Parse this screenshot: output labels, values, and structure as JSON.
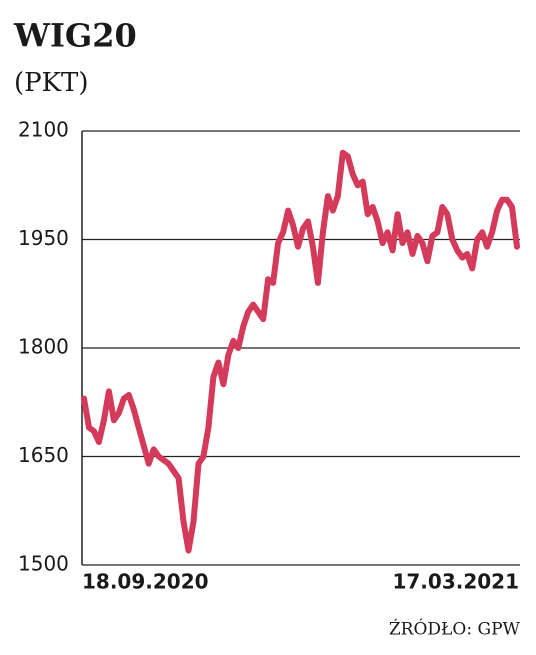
{
  "chart_data": {
    "type": "line",
    "title": "WIG20",
    "subtitle": "(PKT)",
    "source": "ŹRÓDŁO: GPW",
    "categories": [
      "18.09.2020",
      null,
      null,
      null,
      null,
      null,
      null,
      null,
      null,
      null,
      null,
      null,
      null,
      null,
      null,
      null,
      null,
      null,
      null,
      null,
      null,
      null,
      null,
      null,
      null,
      null,
      null,
      null,
      null,
      null,
      null,
      null,
      null,
      null,
      null,
      null,
      null,
      null,
      null,
      null,
      null,
      null,
      null,
      null,
      null,
      null,
      null,
      null,
      null,
      null,
      null,
      null,
      null,
      null,
      null,
      null,
      null,
      null,
      null,
      null,
      null,
      null,
      null,
      null,
      null,
      null,
      null,
      null,
      null,
      null,
      null,
      null,
      null,
      null,
      null,
      null,
      null,
      null,
      null,
      null,
      null,
      null,
      null,
      null,
      null,
      null,
      null,
      "17.03.2021"
    ],
    "series": [
      {
        "name": "WIG20",
        "color": "#d43a5a",
        "values": [
          1730,
          1690,
          1685,
          1670,
          1700,
          1740,
          1700,
          1710,
          1730,
          1735,
          1715,
          1690,
          1665,
          1640,
          1660,
          1650,
          1645,
          1640,
          1630,
          1620,
          1560,
          1520,
          1560,
          1640,
          1650,
          1690,
          1760,
          1780,
          1750,
          1790,
          1810,
          1800,
          1830,
          1850,
          1860,
          1850,
          1840,
          1895,
          1890,
          1945,
          1960,
          1990,
          1970,
          1940,
          1965,
          1975,
          1940,
          1890,
          1960,
          2010,
          1990,
          2010,
          2070,
          2065,
          2040,
          2025,
          2030,
          1985,
          1995,
          1975,
          1945,
          1960,
          1935,
          1985,
          1945,
          1960,
          1930,
          1955,
          1945,
          1920,
          1955,
          1960,
          1995,
          1985,
          1950,
          1935,
          1925,
          1930,
          1910,
          1950,
          1960,
          1940,
          1960,
          1990,
          2005,
          2005,
          1995,
          1940
        ]
      }
    ],
    "ylim": [
      1500,
      2100
    ],
    "yticks": [
      1500,
      1650,
      1800,
      1950,
      2100
    ],
    "grid": true
  }
}
